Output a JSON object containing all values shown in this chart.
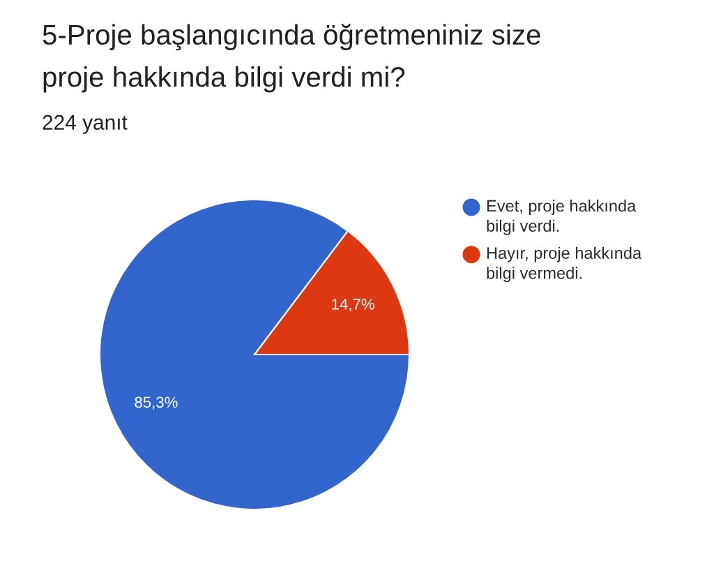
{
  "chart_data": {
    "type": "pie",
    "title": "5-Proje başlangıcında öğretmeniniz size\nproje hakkında bilgi verdi mi?",
    "subtitle": "224 yanıt",
    "categories": [
      "Evet, proje hakkında\nbilgi verdi.",
      "Hayır, proje hakkında\nbilgi vermedi."
    ],
    "values": [
      85.3,
      14.7
    ],
    "colors": [
      "#3366cc",
      "#dc3912"
    ],
    "value_labels": [
      "85,3%",
      "14,7%"
    ],
    "legend": "right"
  }
}
